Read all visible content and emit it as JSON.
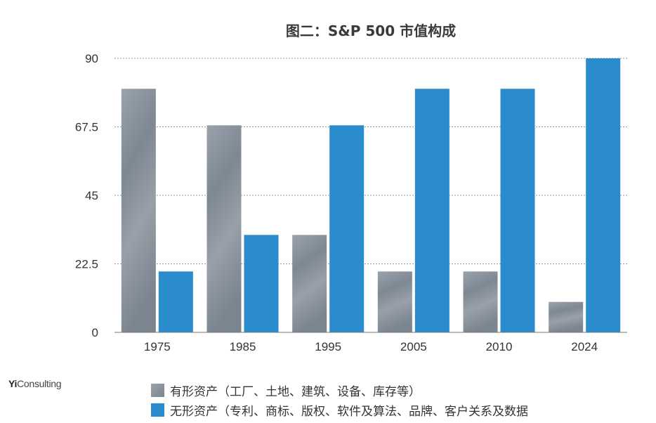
{
  "chart_data": {
    "type": "bar",
    "title": "图二：S&P 500 市值构成",
    "categories": [
      "1975",
      "1985",
      "1995",
      "2005",
      "2010",
      "2024"
    ],
    "series": [
      {
        "name": "有形资产（工厂、土地、建筑、设备、库存等）",
        "values": [
          80,
          68,
          32,
          20,
          20,
          10
        ],
        "color": "#8c959e"
      },
      {
        "name": "无形资产（专利、商标、版权、软件及算法、品牌、客户关系及数据",
        "values": [
          20,
          32,
          68,
          80,
          80,
          90
        ],
        "color": "#2a8ccc"
      }
    ],
    "ylim": [
      0,
      90
    ],
    "yticks": [
      0,
      22.5,
      45,
      67.5,
      90
    ],
    "ytick_labels": [
      "0",
      "22.5",
      "45",
      "67.5",
      "90"
    ],
    "grid": true,
    "legend_position": "bottom",
    "xlabel": "",
    "ylabel": ""
  },
  "brand": {
    "prefix": "Yi",
    "suffix": "Consulting"
  }
}
